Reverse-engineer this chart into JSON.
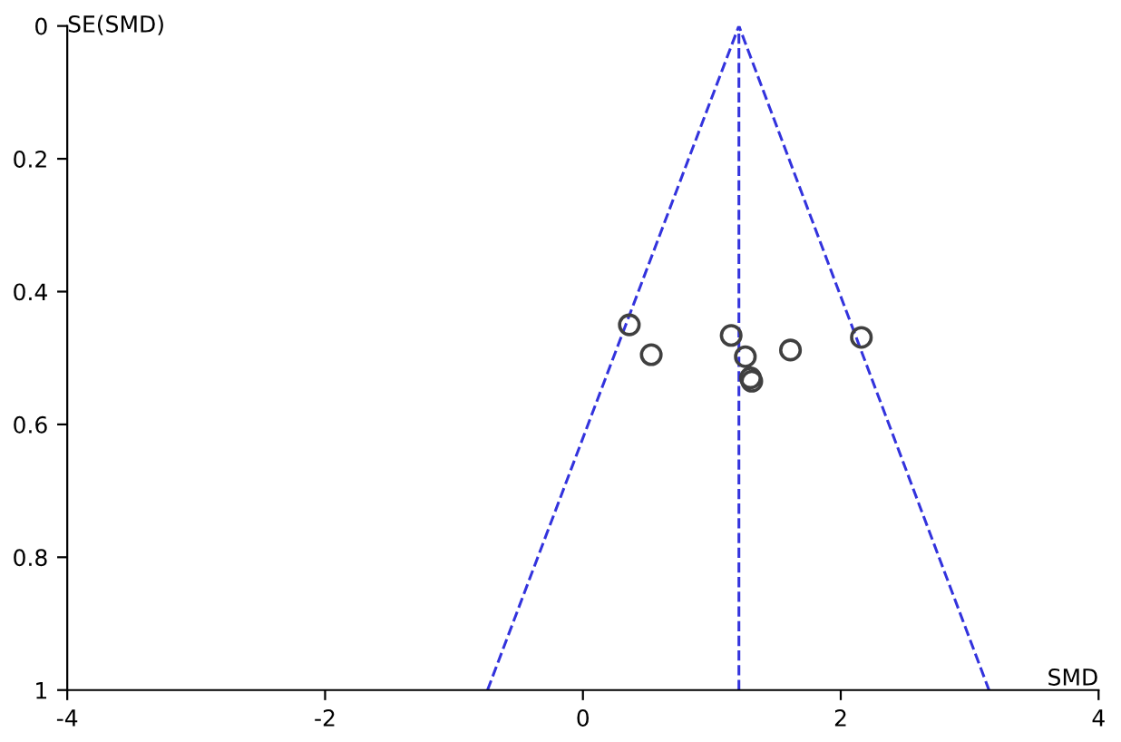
{
  "chart_data": {
    "type": "scatter",
    "xlabel": "SMD",
    "ylabel": "SE(SMD)",
    "xlim": [
      -4,
      4
    ],
    "xticks": [
      -4,
      -2,
      0,
      2,
      4
    ],
    "ylim": [
      1,
      0
    ],
    "yticks": [
      0,
      0.2,
      0.4,
      0.6,
      0.8,
      1
    ],
    "grid": false,
    "legend": false,
    "series": [
      {
        "marker": "circle",
        "color": "#404040",
        "x": [
          0.36,
          0.53,
          1.15,
          1.26,
          1.3,
          1.31,
          1.61,
          2.16
        ],
        "values": [
          0.45,
          0.495,
          0.466,
          0.498,
          0.53,
          0.535,
          0.488,
          0.469
        ]
      },
      {
        "type": "line",
        "line_style": "dashed",
        "marker": "none",
        "color": "#3333dd",
        "x": [
          -0.74,
          1.21,
          3.15
        ],
        "values": [
          1,
          0,
          1
        ]
      }
    ],
    "ref_lines": [
      {
        "axis": "x",
        "value": 1.21,
        "label": null,
        "color": "#3333dd",
        "line_style": "dashed"
      }
    ]
  }
}
